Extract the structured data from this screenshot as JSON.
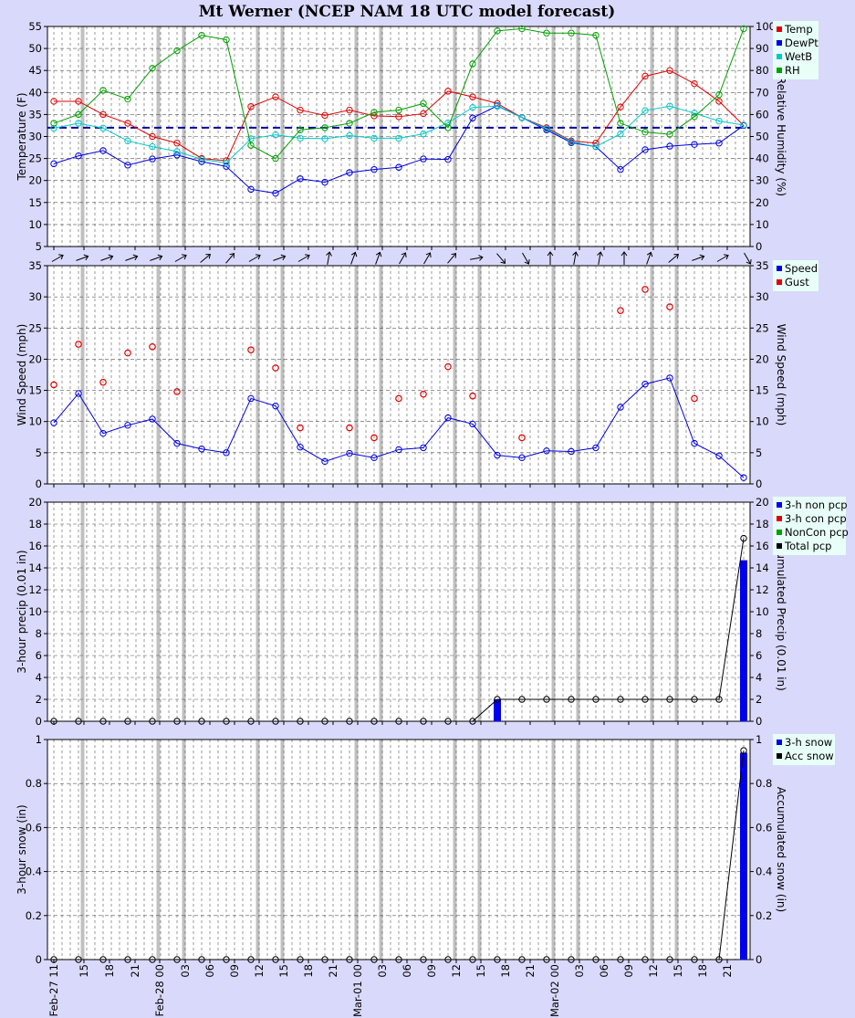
{
  "title": "Mt Werner (NCEP NAM 18 UTC model forecast)",
  "x_tick_labels": [
    "Feb-27 11",
    "15",
    "18",
    "21",
    "Feb-28 00",
    "03",
    "06",
    "09",
    "12",
    "15",
    "18",
    "21",
    "Mar-01 00",
    "03",
    "06",
    "09",
    "12",
    "15",
    "18",
    "21",
    "Mar-02 00",
    "03",
    "06",
    "09",
    "12",
    "15",
    "18",
    "21"
  ],
  "chart_data": [
    {
      "type": "line",
      "panel": "temperature",
      "x": [
        "Feb-27 12",
        "Feb-27 15",
        "Feb-27 18",
        "Feb-27 21",
        "Feb-28 00",
        "Feb-28 03",
        "Feb-28 06",
        "Feb-28 09",
        "Feb-28 12",
        "Feb-28 15",
        "Feb-28 18",
        "Feb-28 21",
        "Mar-01 00",
        "Mar-01 03",
        "Mar-01 06",
        "Mar-01 09",
        "Mar-01 12",
        "Mar-01 15",
        "Mar-01 18",
        "Mar-01 21",
        "Mar-02 00",
        "Mar-02 03",
        "Mar-02 06",
        "Mar-02 09",
        "Mar-02 12",
        "Mar-02 15",
        "Mar-02 18",
        "Mar-02 21",
        "Mar-03 00"
      ],
      "ylabel": "Temperature (F)",
      "y2label": "Relative Humidity (%)",
      "ylim": [
        5,
        55
      ],
      "y2lim": [
        0,
        100
      ],
      "reference_line": 32,
      "legend": "top-right",
      "series": [
        {
          "name": "Temp",
          "color": "#e00000",
          "values": [
            38,
            38,
            35,
            33,
            30,
            28.5,
            25,
            24.5,
            36.8,
            39,
            36,
            34.8,
            36,
            34.7,
            34.5,
            35.2,
            40.3,
            39,
            37.5,
            34.3,
            32,
            29,
            28.5,
            36.7,
            43.7,
            45,
            42,
            38,
            32.5
          ]
        },
        {
          "name": "DewPt",
          "color": "#0000e0",
          "values": [
            23.8,
            25.6,
            26.8,
            23.5,
            24.9,
            25.8,
            24.3,
            23.2,
            18,
            17.1,
            20.4,
            19.6,
            21.8,
            22.5,
            23,
            24.9,
            24.8,
            34.2,
            37,
            34.3,
            31.5,
            28.6,
            27.7,
            22.5,
            27,
            27.8,
            28.2,
            28.5,
            32.5
          ]
        },
        {
          "name": "WetB",
          "color": "#00c8c8",
          "values": [
            31.9,
            33,
            31.9,
            29,
            27.7,
            26.6,
            24.8,
            24,
            29.5,
            30.4,
            29.6,
            29.5,
            30.2,
            29.6,
            29.6,
            30.6,
            33.1,
            36.6,
            36.9,
            34.3,
            31.8,
            28.8,
            27.7,
            30.6,
            35.9,
            36.9,
            35.3,
            33.5,
            32.6
          ]
        },
        {
          "name": "RH",
          "color": "#00a000",
          "values": [
            56,
            60,
            71,
            67,
            81,
            89,
            96,
            94,
            46,
            40,
            53,
            54,
            56,
            61,
            62,
            65,
            54,
            83,
            98,
            99,
            97,
            97,
            96,
            56,
            52,
            51,
            59,
            69,
            99
          ]
        }
      ]
    },
    {
      "type": "line",
      "panel": "wind",
      "ylabel": "Wind Speed (mph)",
      "y2label": "Wind Speed (mph)",
      "ylim": [
        0,
        35
      ],
      "legend": "top-right",
      "series": [
        {
          "name": "Speed",
          "color": "#0000e0",
          "values": [
            9.8,
            14.5,
            8.1,
            9.4,
            10.4,
            6.5,
            5.6,
            5,
            13.7,
            12.5,
            5.9,
            3.6,
            4.9,
            4.2,
            5.5,
            5.8,
            10.6,
            9.6,
            4.6,
            4.2,
            5.3,
            5.2,
            5.8,
            12.3,
            16,
            17,
            6.5,
            4.5,
            1
          ]
        },
        {
          "name": "Gust",
          "color": "#e00000",
          "values": [
            15.9,
            22.4,
            16.3,
            21,
            22,
            14.8,
            null,
            null,
            21.5,
            18.6,
            9,
            null,
            9,
            7.4,
            13.7,
            14.4,
            18.8,
            14.1,
            null,
            7.4,
            null,
            null,
            null,
            27.8,
            31.2,
            28.4,
            13.7,
            null,
            null
          ]
        }
      ]
    },
    {
      "type": "bar",
      "panel": "precipitation",
      "ylabel": "3-hour precip (0.01 in)",
      "y2label": "Accumulated Precip (0.01 in)",
      "ylim": [
        0,
        20
      ],
      "legend": "top-right",
      "series": [
        {
          "name": "3-h non pcp",
          "color": "#0000ee",
          "values": [
            0,
            0,
            0,
            0,
            0,
            0,
            0,
            0,
            0,
            0,
            0,
            0,
            0,
            0,
            0,
            0,
            0,
            0,
            2,
            0,
            0,
            0,
            0,
            0,
            0,
            0,
            0,
            0,
            14.7
          ]
        },
        {
          "name": "3-h con pcp",
          "color": "#e00000",
          "values": [
            0,
            0,
            0,
            0,
            0,
            0,
            0,
            0,
            0,
            0,
            0,
            0,
            0,
            0,
            0,
            0,
            0,
            0,
            0,
            0,
            0,
            0,
            0,
            0,
            0,
            0,
            0,
            0,
            0
          ]
        },
        {
          "name": "NonCon pcp",
          "color": "#00a000",
          "values": []
        },
        {
          "name": "Total pcp",
          "color": "#000000",
          "values": [
            0,
            0,
            0,
            0,
            0,
            0,
            0,
            0,
            0,
            0,
            0,
            0,
            0,
            0,
            0,
            0,
            0,
            0,
            2,
            2,
            2,
            2,
            2,
            2,
            2,
            2,
            2,
            2,
            16.7
          ]
        }
      ]
    },
    {
      "type": "bar",
      "panel": "snow",
      "ylabel": "3-hour snow (in)",
      "y2label": "Accumulated snow (in)",
      "ylim": [
        0,
        1
      ],
      "legend": "top-right",
      "series": [
        {
          "name": "3-h snow",
          "color": "#0000ee",
          "values": [
            0,
            0,
            0,
            0,
            0,
            0,
            0,
            0,
            0,
            0,
            0,
            0,
            0,
            0,
            0,
            0,
            0,
            0,
            0,
            0,
            0,
            0,
            0,
            0,
            0,
            0,
            0,
            0,
            0.94
          ]
        },
        {
          "name": "Acc snow",
          "color": "#000000",
          "values": [
            0,
            0,
            0,
            0,
            0,
            0,
            0,
            0,
            0,
            0,
            0,
            0,
            0,
            0,
            0,
            0,
            0,
            0,
            0,
            0,
            0,
            0,
            0,
            0,
            0,
            0,
            0,
            0,
            0.95
          ]
        }
      ]
    }
  ],
  "wind_direction_deg": [
    240,
    250,
    250,
    250,
    250,
    240,
    230,
    220,
    240,
    250,
    240,
    190,
    200,
    200,
    210,
    210,
    220,
    260,
    320,
    330,
    180,
    190,
    190,
    180,
    200,
    230,
    250,
    240,
    330
  ]
}
